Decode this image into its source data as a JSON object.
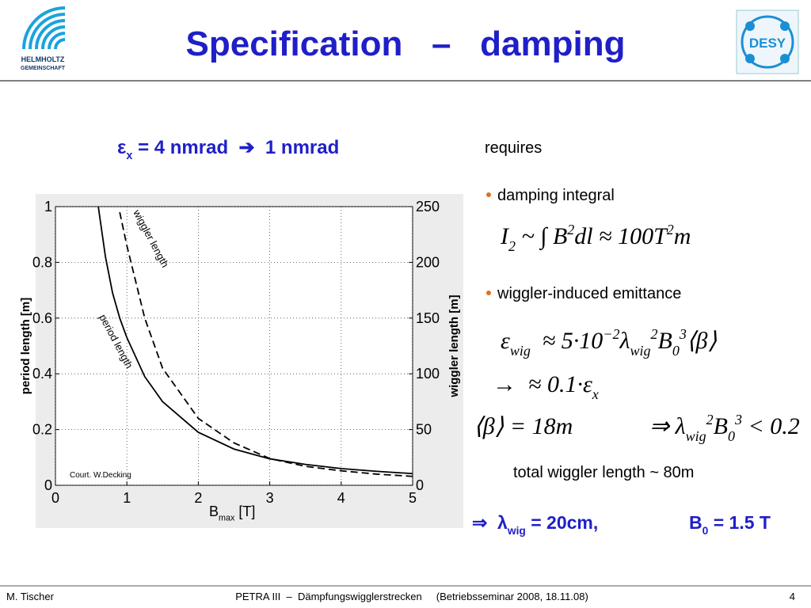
{
  "header": {
    "title": "Specification   –   damping",
    "logo_left": [
      "HELMHOLTZ",
      "GEMEINSCHAFT"
    ],
    "logo_right": "DESY"
  },
  "heading": [
    {
      "text": "ε"
    },
    {
      "text": "x",
      "pos": "sub"
    },
    {
      "text": " = 4 nmrad  ➔  1 nmrad"
    }
  ],
  "text": {
    "requires": "requires",
    "bullet1": "damping integral",
    "bullet2": "wiggler-induced emittance",
    "note": "total wiggler length ~ 80m"
  },
  "formulas": [
    [
      {
        "text": "I"
      },
      {
        "text": "2",
        "pos": "sub"
      },
      {
        "text": " ~ ∫ B"
      },
      {
        "text": "2",
        "pos": "sup"
      },
      {
        "text": "dl ≈ 100T"
      },
      {
        "text": "2",
        "pos": "sup"
      },
      {
        "text": "m"
      }
    ],
    [
      {
        "text": "ε"
      },
      {
        "text": "wig",
        "pos": "sub"
      },
      {
        "text": "  ≈ 5·10"
      },
      {
        "text": "−2",
        "pos": "sup"
      },
      {
        "text": "λ"
      },
      {
        "text": "wig",
        "pos": "sub"
      },
      {
        "text": "2",
        "pos": "sup"
      },
      {
        "text": "B"
      },
      {
        "text": "0",
        "pos": "sub"
      },
      {
        "text": "3",
        "pos": "sup"
      },
      {
        "text": "⟨β⟩"
      }
    ],
    [
      {
        "text": "→  ≈ 0.1·ε"
      },
      {
        "text": "x",
        "pos": "sub"
      }
    ],
    [
      {
        "text": "⟨β⟩ = 18m"
      }
    ],
    [
      {
        "text": "⇒ λ"
      },
      {
        "text": "wig",
        "pos": "sub"
      },
      {
        "text": "2",
        "pos": "sup"
      },
      {
        "text": "B"
      },
      {
        "text": "0",
        "pos": "sub"
      },
      {
        "text": "3",
        "pos": "sup"
      },
      {
        "text": " < 0.2"
      }
    ]
  ],
  "result": [
    [
      {
        "text": "⇒  λ"
      },
      {
        "text": "wig",
        "pos": "sub"
      },
      {
        "text": " = 20cm,"
      }
    ],
    [
      {
        "text": "B"
      },
      {
        "text": "0",
        "pos": "sub"
      },
      {
        "text": " = 1.5 T"
      }
    ]
  ],
  "chart_data": {
    "type": "line",
    "x": [
      0.6,
      0.7,
      0.8,
      0.9,
      1,
      1.25,
      1.5,
      2,
      2.5,
      3,
      3.5,
      4,
      4.5,
      5
    ],
    "series": [
      {
        "name": "period length",
        "color": "#000000",
        "dash": false,
        "values": [
          1,
          0.82,
          0.69,
          0.6,
          0.53,
          0.39,
          0.3,
          0.19,
          0.13,
          0.095,
          0.075,
          0.06,
          0.05,
          0.042
        ]
      },
      {
        "name": "wiggler length",
        "color": "#000000",
        "dash": true,
        "axis": "y2",
        "values": [
          null,
          null,
          null,
          245,
          215,
          150,
          105,
          60,
          38,
          24,
          17,
          13,
          10,
          8
        ]
      }
    ],
    "xlim": [
      0,
      5
    ],
    "ylim": [
      0,
      1
    ],
    "y2lim": [
      0,
      250
    ],
    "xticks": [
      0,
      1,
      2,
      3,
      4,
      5
    ],
    "yticks": [
      0,
      0.2,
      0.4,
      0.6,
      0.8,
      1
    ],
    "y2ticks": [
      0,
      50,
      100,
      150,
      200,
      250
    ],
    "xlabel": [
      {
        "text": "B"
      },
      {
        "text": "max",
        "pos": "sub"
      },
      {
        "text": " [T]"
      }
    ],
    "ylabel": "period length [m]",
    "y2label": "wiggler length [m]",
    "credit": "Court. W.Decking",
    "grid": true
  },
  "footer": {
    "author": "M. Tischer",
    "center": "PETRA III  –  Dämpfungswigglerstrecken     (Betriebsseminar 2008, 18.11.08)",
    "page": "4"
  }
}
